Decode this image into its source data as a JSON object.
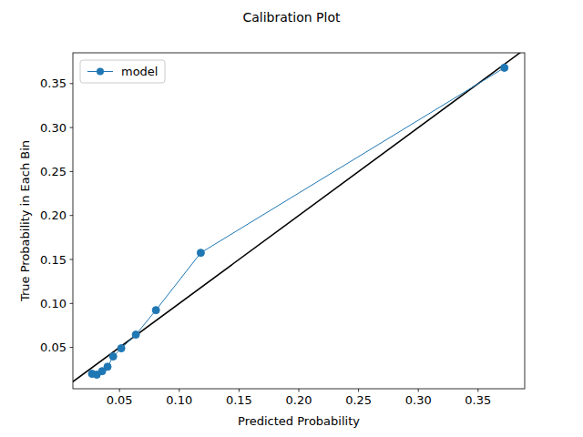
{
  "chart_data": {
    "type": "line",
    "title": "Calibration Plot",
    "x_label": "Predicted Probability",
    "y_label": "True Probability in Each Bin",
    "x": [
      0.027,
      0.031,
      0.0355,
      0.04,
      0.0447,
      0.0515,
      0.0637,
      0.0805,
      0.118,
      0.372
    ],
    "series": [
      {
        "name": "model",
        "color": "#1f77b4",
        "marker": "circle",
        "values": [
          0.02,
          0.019,
          0.023,
          0.028,
          0.0397,
          0.049,
          0.0645,
          0.0924,
          0.1576,
          0.368
        ]
      }
    ],
    "xlim": [
      0.011,
      0.389
    ],
    "ylim": [
      0.003,
      0.385
    ],
    "xticks": [
      0.05,
      {
        "value": 0.1,
        "label": "0.10"
      },
      0.15,
      {
        "value": 0.2,
        "label": "0.20"
      },
      0.25,
      {
        "value": 0.3,
        "label": "0.30"
      },
      0.35
    ],
    "yticks": [
      0.05,
      {
        "value": 0.1,
        "label": "0.10"
      },
      0.15,
      {
        "value": 0.2,
        "label": "0.20"
      },
      0.25,
      {
        "value": 0.3,
        "label": "0.30"
      },
      0.35
    ],
    "grid": false,
    "legend": "upper left"
  }
}
